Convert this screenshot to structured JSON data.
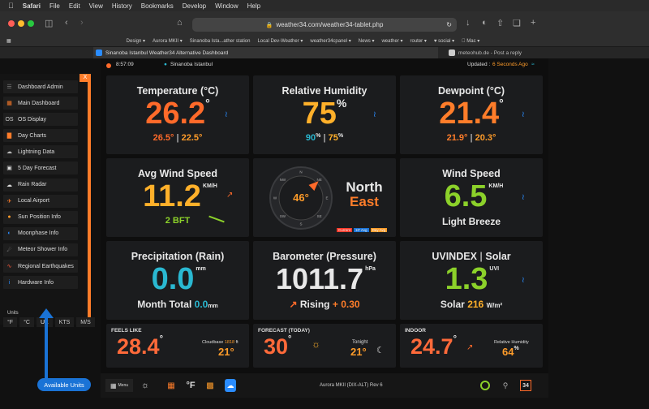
{
  "menubar": {
    "apple": "",
    "app": "Safari",
    "items": [
      "File",
      "Edit",
      "View",
      "History",
      "Bookmarks",
      "Develop",
      "Window",
      "Help"
    ]
  },
  "url": "weather34.com/weather34-tablet.php",
  "bookmarks": [
    "Design ▾",
    "Aurora MKII ▾",
    "Sinanoba Ista...ather station",
    "Local Dev-Weather ▾",
    "weather34cpanel ▾",
    "News ▾",
    "weather ▾",
    "router ▾",
    "♥ social ▾",
    " Mac ▾"
  ],
  "tabs": {
    "active": "Sinanoba Istanbul Weather34 Alternative Dashboard",
    "other": "meteohub.de - Post a reply"
  },
  "status": {
    "time": "8:57:09",
    "station": "Sinanoba Istanbul",
    "updated_label": "Updated :",
    "updated_value": "6 Seconds Ago"
  },
  "sidebar": {
    "close": "X",
    "items": [
      {
        "label": "Dashboard Admin",
        "icon": "admin-icon",
        "color": "#888"
      },
      {
        "label": "Main Dashboard",
        "icon": "grid-icon",
        "color": "#ff7d2a"
      },
      {
        "label": "OS Display",
        "icon": "os-icon",
        "color": "#ccc"
      },
      {
        "label": "Day Charts",
        "icon": "bar-chart-icon",
        "color": "#ff7d2a"
      },
      {
        "label": "Lightning Data",
        "icon": "lightning-cloud-icon",
        "color": "#bbb"
      },
      {
        "label": "5 Day Forecast",
        "icon": "forecast-icon",
        "color": "#ddd"
      },
      {
        "label": "Rain Radar",
        "icon": "cloud-icon",
        "color": "#ddd"
      },
      {
        "label": "Local Airport",
        "icon": "plane-icon",
        "color": "#ff7d2a"
      },
      {
        "label": "Sun Position Info",
        "icon": "sun-icon",
        "color": "#ff9c2a"
      },
      {
        "label": "Moonphase Info",
        "icon": "moon-icon",
        "color": "#2a8cff"
      },
      {
        "label": "Meteor Shower Info",
        "icon": "meteor-icon",
        "color": "#aaa"
      },
      {
        "label": "Regional Earthquakes",
        "icon": "earthquake-icon",
        "color": "#ff5a3a"
      },
      {
        "label": "Hardware Info",
        "icon": "info-icon",
        "color": "#2a8cff"
      }
    ],
    "units_label": "Units",
    "units": [
      "°F",
      "°C",
      "UK",
      "KTS",
      "M/S"
    ],
    "callout": "Available Units"
  },
  "cards": {
    "temperature": {
      "title": "Temperature (°C)",
      "value": "26.2",
      "unit": "°",
      "hi": "26.5°",
      "lo": "22.5°",
      "sep": "|"
    },
    "humidity": {
      "title": "Relative Humidity",
      "value": "75",
      "unit": "%",
      "hi": "90",
      "hi_unit": "%",
      "lo": "75",
      "lo_unit": "%",
      "sep": "|"
    },
    "dewpoint": {
      "title": "Dewpoint (°C)",
      "value": "21.4",
      "unit": "°",
      "hi": "21.9°",
      "lo": "20.3°",
      "sep": "|"
    },
    "wind_avg": {
      "title": "Avg Wind Speed",
      "value": "11.2",
      "unit": "KM/H",
      "bft": "2 BFT"
    },
    "compass": {
      "degrees": "46°",
      "dir1": "North",
      "dir2": "East",
      "legend": [
        "Current",
        "10' Avg",
        "Day Avg"
      ],
      "points": [
        "N",
        "NE",
        "E",
        "SE",
        "S",
        "SW",
        "W",
        "NW"
      ],
      "direction_deg": 46
    },
    "wind_speed": {
      "title": "Wind Speed",
      "value": "6.5",
      "unit": "KM/H",
      "desc": "Light Breeze"
    },
    "precip": {
      "title": "Precipitation (Rain)",
      "value": "0.0",
      "unit": "mm",
      "month_label": "Month Total",
      "month_value": "0.0",
      "month_unit": "mm"
    },
    "barometer": {
      "title": "Barometer (Pressure)",
      "value": "1011.7",
      "unit": "hPa",
      "trend": "Rising",
      "trend_val": "+ 0.30"
    },
    "uv": {
      "title_a": "UVINDEX",
      "sep": "|",
      "title_b": "Solar",
      "value": "1.3",
      "unit": "UVI",
      "solar_label": "Solar",
      "solar_value": "216",
      "solar_unit": "W/m²"
    },
    "feels": {
      "title": "FEELS LIKE",
      "value": "28.4",
      "unit": "°",
      "cloud_label": "Cloudbase",
      "cloud_val": "1818",
      "cloud_unit": "ft",
      "cloud_temp": "21°"
    },
    "forecast": {
      "title": "FORECAST (TODAY)",
      "value": "30",
      "unit": "°",
      "tonight": "Tonight",
      "tonight_temp": "21°"
    },
    "indoor": {
      "title": "INDOOR",
      "value": "24.7",
      "unit": "°",
      "rh_label": "Relative Humidity",
      "rh_value": "64",
      "rh_unit": "%"
    }
  },
  "bottombar": {
    "menu": "Menu",
    "unit": "°F",
    "model": "Aurora MKII (DIX-ALT) Rev 6",
    "logo": "34"
  },
  "colors": {
    "orange": "#ff6a2a",
    "amber": "#ffb02a",
    "green": "#8cd12a",
    "cyan": "#2ab8d1",
    "white": "#e8e8e8",
    "blue": "#2a8cff"
  }
}
